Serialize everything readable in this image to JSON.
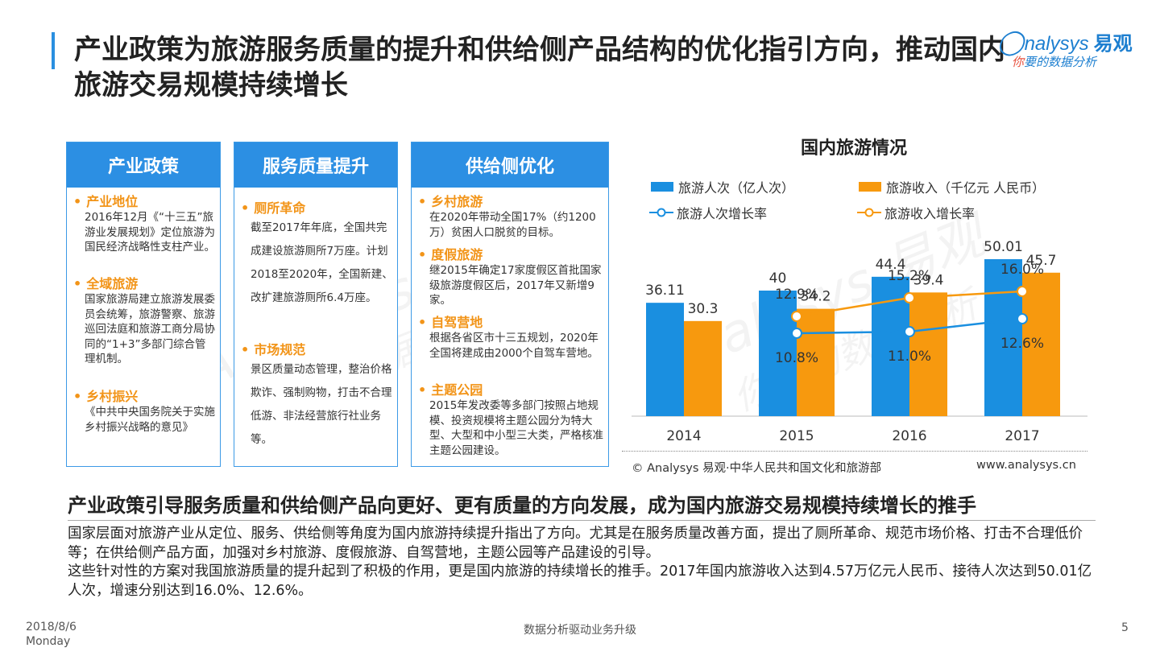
{
  "header": {
    "title": "产业政策为旅游服务质量的提升和供给侧产品结构的优化指引方向，推动国内旅游交易规模持续增长"
  },
  "logo": {
    "brand": "nalysys",
    "brand_cn": "易观",
    "tagline_a": "你",
    "tagline_b": "要的数据分析"
  },
  "watermark": {
    "text1": "Analysys 易观",
    "text2": "你要的数据分析"
  },
  "cards": [
    {
      "heading": "产业政策",
      "items": [
        {
          "title": "产业地位",
          "text": "2016年12月《“十三五”旅游业发展规划》定位旅游为国民经济战略性支柱产业。"
        },
        {
          "title": "全域旅游",
          "text": "国家旅游局建立旅游发展委员会统筹，旅游警察、旅游巡回法庭和旅游工商分局协同的“1+3”多部门综合管理机制。"
        },
        {
          "title": "乡村振兴",
          "text": "《中共中央国务院关于实施乡村振兴战略的意见》"
        }
      ]
    },
    {
      "heading": "服务质量提升",
      "items": [
        {
          "title": "厕所革命",
          "text": "截至2017年年底，全国共完成建设旅游厕所7万座。计划2018至2020年，全国新建、改扩建旅游厕所6.4万座。"
        },
        {
          "title": "市场规范",
          "text": "景区质量动态管理，整治价格欺诈、强制购物，打击不合理低游、非法经营旅行社业务等。"
        }
      ]
    },
    {
      "heading": "供给侧优化",
      "items": [
        {
          "title": "乡村旅游",
          "text": "在2020年带动全国17%（约1200万）贫困人口脱贫的目标。"
        },
        {
          "title": "度假旅游",
          "text": "继2015年确定17家度假区首批国家级旅游度假区后，2017年又新增9家。"
        },
        {
          "title": "自驾营地",
          "text": "根据各省区市十三五规划，2020年全国将建成由2000个自驾车营地。"
        },
        {
          "title": "主题公园",
          "text": "2015年发改委等多部门按照占地规模、投资规模将主题公园分为特大型、大型和中小型三大类，严格核准主题公园建设。"
        }
      ]
    }
  ],
  "chart": {
    "title": "国内旅游情况",
    "source": "© Analysys 易观·中华人民共和国文化和旅游部",
    "url": "www.analysys.cn"
  },
  "chart_data": {
    "type": "bar",
    "title": "国内旅游情况",
    "categories": [
      "2014",
      "2015",
      "2016",
      "2017"
    ],
    "series": [
      {
        "name": "旅游人次（亿人次）",
        "type": "bar",
        "values": [
          36.11,
          40,
          44.4,
          50.01
        ],
        "color": "#1a8fe0"
      },
      {
        "name": "旅游收入（千亿元 人民币）",
        "type": "bar",
        "values": [
          30.3,
          34.2,
          39.4,
          45.7
        ],
        "color": "#f7990e"
      },
      {
        "name": "旅游人次增长率",
        "type": "line",
        "values": [
          null,
          "10.8%",
          "11.0%",
          "12.6%"
        ],
        "color": "#1a8fe0"
      },
      {
        "name": "旅游收入增长率",
        "type": "line",
        "values": [
          null,
          "12.9%",
          "15.2%",
          "16.0%"
        ],
        "color": "#f7990e"
      }
    ],
    "legend_position": "top",
    "grid": false
  },
  "conclusion": {
    "heading": "产业政策引导服务质量和供给侧产品向更好、更有质量的方向发展，成为国内旅游交易规模持续增长的推手",
    "para1": "国家层面对旅游产业从定位、服务、供给侧等角度为国内旅游持续提升指出了方向。尤其是在服务质量改善方面，提出了厕所革命、规范市场价格、打击不合理低价等；在供给侧产品方面，加强对乡村旅游、度假旅游、自驾营地，主题公园等产品建设的引导。",
    "para2": "这些针对性的方案对我国旅游质量的提升起到了积极的作用，更是国内旅游的持续增长的推手。2017年国内旅游收入达到4.57万亿元人民币、接待人次达到50.01亿人次，增速分别达到16.0%、12.6%。"
  },
  "footer": {
    "date": "2018/8/6",
    "weekday": "Monday",
    "center": "数据分析驱动业务升级",
    "page": "5"
  }
}
